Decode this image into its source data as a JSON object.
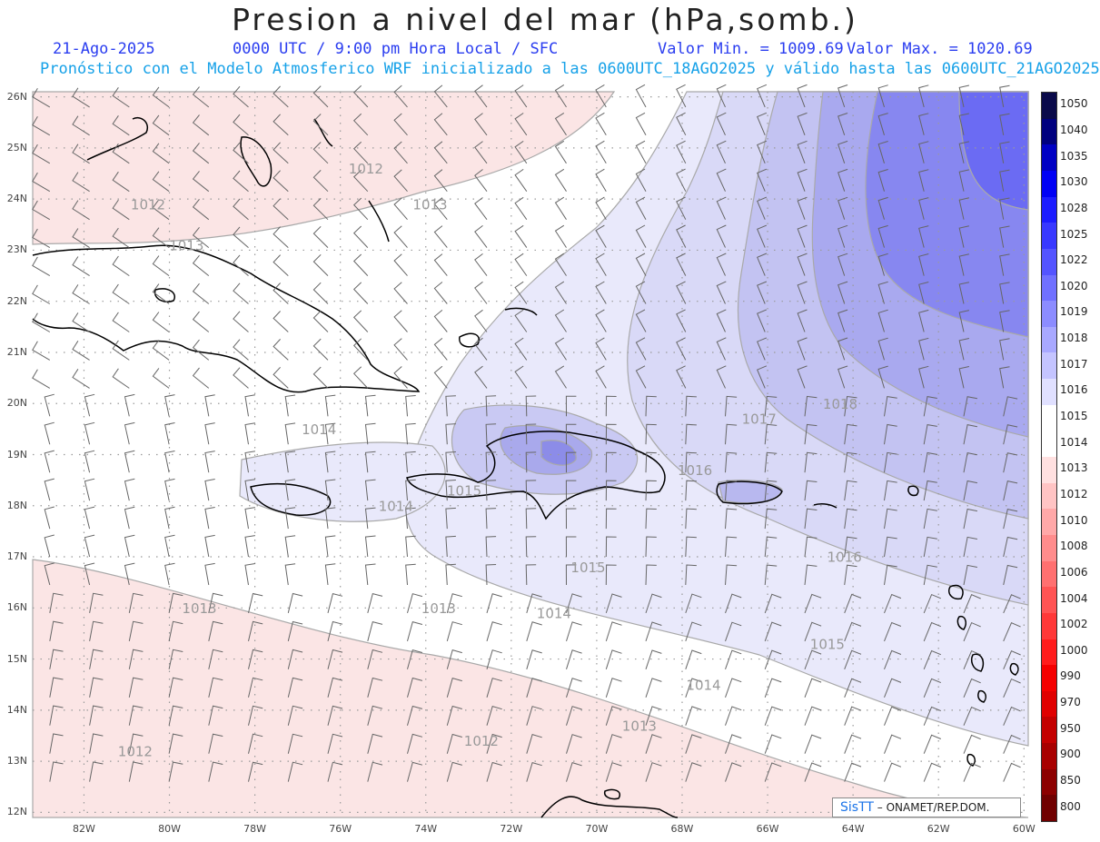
{
  "title": "Presion a nivel del mar (hPa,somb.)",
  "header": {
    "date": "21-Ago-2025",
    "time": "0000 UTC / 9:00 pm Hora Local / SFC",
    "min": "Valor Min. = 1009.69",
    "max": "Valor Max. = 1020.69",
    "model_line": "Pronóstico con el Modelo Atmosferico WRF inicializado a las 0600UTC_18AGO2025 y válido hasta las  0600UTC_21AGO2025"
  },
  "lat_labels": [
    "26N",
    "25N",
    "24N",
    "23N",
    "22N",
    "21N",
    "20N",
    "19N",
    "18N",
    "17N",
    "16N",
    "15N",
    "14N",
    "13N",
    "12N"
  ],
  "lon_labels": [
    "82W",
    "80W",
    "78W",
    "76W",
    "74W",
    "72W",
    "70W",
    "68W",
    "66W",
    "64W",
    "62W",
    "60W"
  ],
  "contour_labels": [
    {
      "text": "1012",
      "lon": -80.5,
      "lat": 23.8
    },
    {
      "text": "1012",
      "lon": -75.4,
      "lat": 24.5
    },
    {
      "text": "1013",
      "lon": -79.6,
      "lat": 23.0
    },
    {
      "text": "1013",
      "lon": -73.9,
      "lat": 23.8
    },
    {
      "text": "1014",
      "lon": -76.5,
      "lat": 19.4
    },
    {
      "text": "1015",
      "lon": -73.1,
      "lat": 18.2
    },
    {
      "text": "1014",
      "lon": -74.7,
      "lat": 17.9
    },
    {
      "text": "1016",
      "lon": -67.7,
      "lat": 18.6
    },
    {
      "text": "1017",
      "lon": -66.2,
      "lat": 19.6
    },
    {
      "text": "1018",
      "lon": -64.3,
      "lat": 19.9
    },
    {
      "text": "1016",
      "lon": -64.2,
      "lat": 16.9
    },
    {
      "text": "1015",
      "lon": -70.2,
      "lat": 16.7
    },
    {
      "text": "1014",
      "lon": -71.0,
      "lat": 15.8
    },
    {
      "text": "1013",
      "lon": -73.7,
      "lat": 15.9
    },
    {
      "text": "1013",
      "lon": -79.3,
      "lat": 15.9
    },
    {
      "text": "1015",
      "lon": -64.6,
      "lat": 15.2
    },
    {
      "text": "1014",
      "lon": -67.5,
      "lat": 14.4
    },
    {
      "text": "1013",
      "lon": -69.0,
      "lat": 13.6
    },
    {
      "text": "1012",
      "lon": -72.7,
      "lat": 13.3
    },
    {
      "text": "1012",
      "lon": -80.8,
      "lat": 13.1
    }
  ],
  "colorbar": {
    "labels": [
      "1050",
      "1040",
      "1035",
      "1030",
      "1028",
      "1025",
      "1022",
      "1020",
      "1019",
      "1018",
      "1017",
      "1016",
      "1015",
      "1014",
      "1013",
      "1012",
      "1010",
      "1008",
      "1006",
      "1004",
      "1002",
      "1000",
      "990",
      "970",
      "950",
      "900",
      "850",
      "800"
    ],
    "colors": [
      "#0a0a4a",
      "#00007f",
      "#0000c4",
      "#0000f5",
      "#1c1cff",
      "#3838ff",
      "#5454ff",
      "#7070ff",
      "#8c8cff",
      "#a8a8ff",
      "#c4c4ff",
      "#e0e0ff",
      "#ffffff",
      "#ffffff",
      "#ffe0e0",
      "#ffc4c4",
      "#ffa8a8",
      "#ff8c8c",
      "#ff7070",
      "#ff5454",
      "#ff3838",
      "#ff1c1c",
      "#f50000",
      "#e00000",
      "#c40000",
      "#a80000",
      "#8c0000",
      "#700000"
    ]
  },
  "fill_colors": {
    "low": "#fbe5e5",
    "mid": "#ffffff",
    "b1015": "#e9e9fb",
    "b1016": "#d9d9f7",
    "b1017": "#c3c3f2",
    "b1018": "#a9a9ef",
    "b1019": "#8787f0",
    "high": "#6b6bf3"
  },
  "credit": {
    "brand": "SisTT",
    "text": "– ONAMET/REP.DOM."
  }
}
